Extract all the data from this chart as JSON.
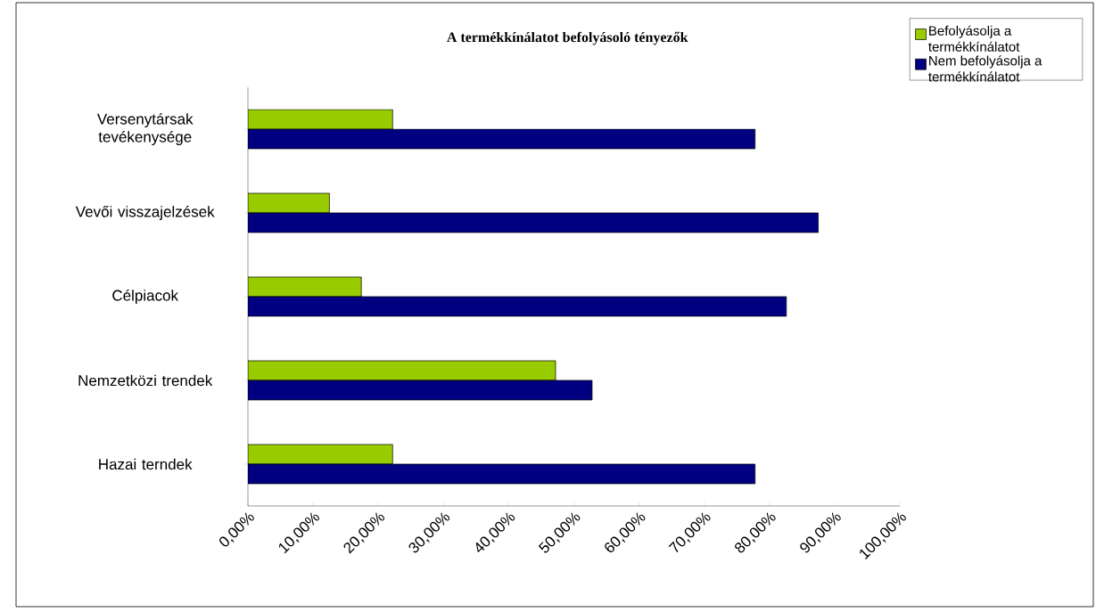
{
  "chart_data": {
    "type": "bar",
    "orientation": "horizontal",
    "title": "A termékkínálatot befolyásoló tényezők",
    "categories": [
      "Versenytársak tevékenysége",
      "Vevői visszajelzések",
      "Célpiacok",
      "Nemzetközi trendek",
      "Hazai terndek"
    ],
    "series": [
      {
        "name": "Befolyásolja a termékkínálatot",
        "color": "#99cc00",
        "values": [
          22.2,
          12.5,
          17.4,
          47.2,
          22.2
        ]
      },
      {
        "name": "Nem befolyásolja a termékkínálatot",
        "color": "#000080",
        "values": [
          77.8,
          87.5,
          82.6,
          52.8,
          77.8
        ]
      }
    ],
    "xlim": [
      0,
      100
    ],
    "xticks": [
      {
        "value": 0,
        "label": "0,00%"
      },
      {
        "value": 10,
        "label": "10,00%"
      },
      {
        "value": 20,
        "label": "20,00%"
      },
      {
        "value": 30,
        "label": "30,00%"
      },
      {
        "value": 40,
        "label": "40,00%"
      },
      {
        "value": 50,
        "label": "50,00%"
      },
      {
        "value": 60,
        "label": "60,00%"
      },
      {
        "value": 70,
        "label": "70,00%"
      },
      {
        "value": 80,
        "label": "80,00%"
      },
      {
        "value": 90,
        "label": "90,00%"
      },
      {
        "value": 100,
        "label": "100,00%"
      }
    ],
    "legend": "right"
  }
}
